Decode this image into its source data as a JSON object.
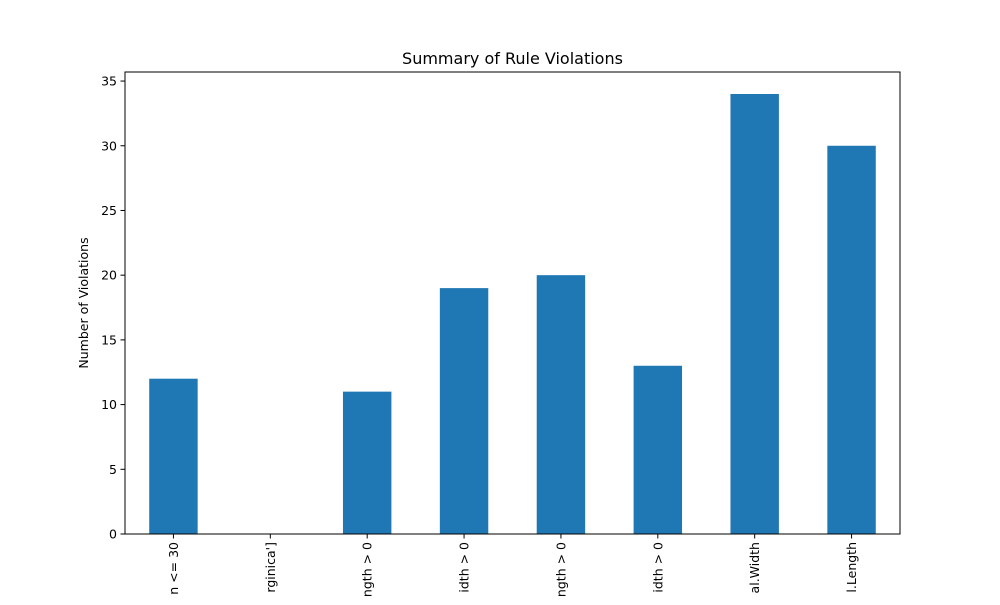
{
  "chart_data": {
    "type": "bar",
    "title": "Summary of Rule Violations",
    "xlabel": "",
    "ylabel": "Number of Violations",
    "categories": [
      "n <= 30",
      "rginica']",
      "ngth > 0",
      "idth > 0",
      "ngth > 0",
      "idth > 0",
      "al.Width",
      "l.Length"
    ],
    "values": [
      12,
      0,
      11,
      19,
      20,
      13,
      34,
      30
    ],
    "ylim": [
      0,
      35.7
    ],
    "yticks": [
      0,
      5,
      10,
      15,
      20,
      25,
      30,
      35
    ],
    "bar_color": "#1f77b4",
    "grid": false,
    "legend": false
  }
}
